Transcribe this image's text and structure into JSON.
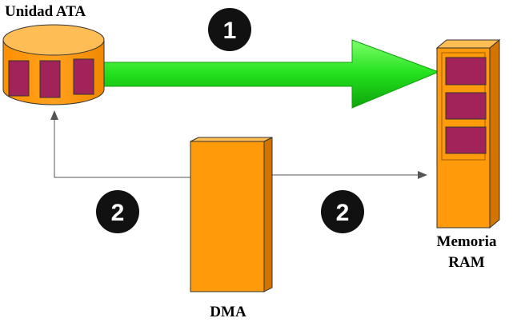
{
  "labels": {
    "ata_unit": "Unidad ATA",
    "memory_line1": "Memoria",
    "memory_line2": "RAM",
    "dma": "DMA"
  },
  "steps": {
    "transfer": "1",
    "dma_left": "2",
    "dma_right": "2"
  },
  "colors": {
    "orange": "#ff9a0a",
    "orange_light": "#ffbd55",
    "orange_dark": "#d47400",
    "purple": "#a1235a",
    "green_arrow": "#22e01c",
    "badge": "#111111",
    "line": "#555555"
  },
  "icons": {
    "ata_unit": "disk-cylinder-icon",
    "memory": "memory-module-icon",
    "dma": "dma-controller-icon"
  }
}
